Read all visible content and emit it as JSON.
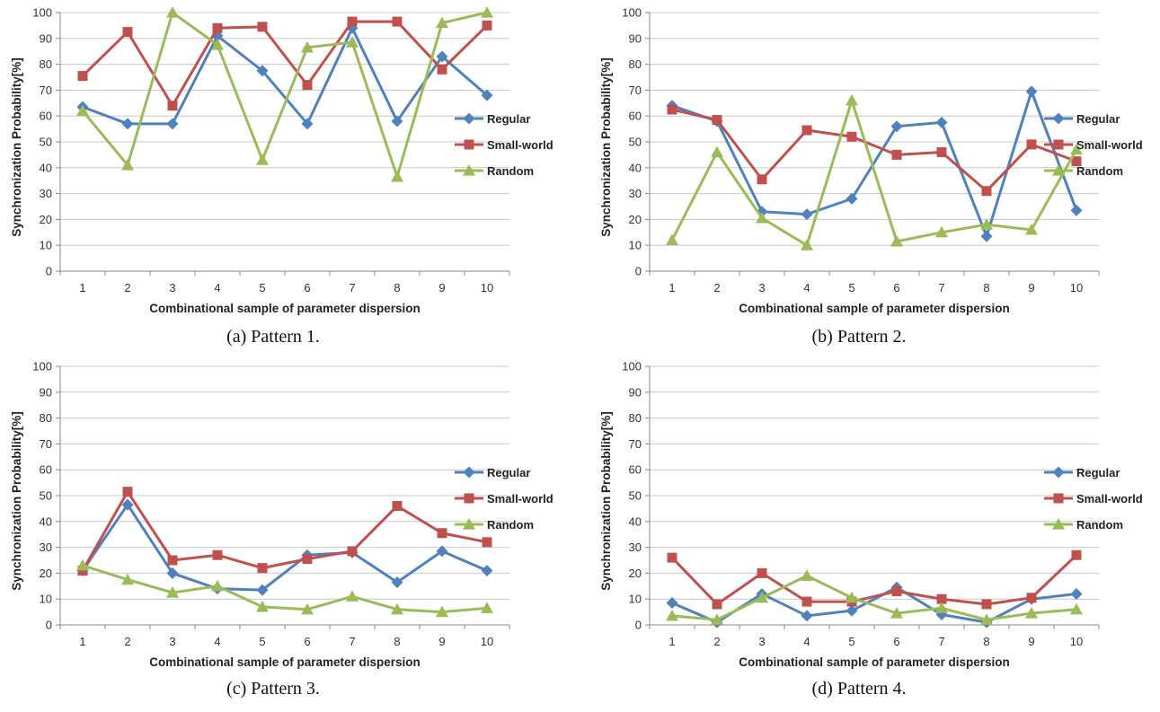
{
  "chart_data": [
    {
      "type": "line",
      "caption": "(a) Pattern 1.",
      "xlabel": "Combinational sample of parameter dispersion",
      "ylabel": "Synchronization Probability[%]",
      "ylim": [
        0,
        100
      ],
      "categories": [
        "1",
        "2",
        "3",
        "4",
        "5",
        "6",
        "7",
        "8",
        "9",
        "10"
      ],
      "y_ticks": [
        "0",
        "10",
        "20",
        "30",
        "40",
        "50",
        "60",
        "70",
        "80",
        "90",
        "100"
      ],
      "grid": true,
      "legend_position": "right",
      "series": [
        {
          "name": "Regular",
          "color": "#4F81BD",
          "marker": "diamond",
          "values": [
            63.5,
            57,
            57,
            91,
            77.5,
            57,
            94,
            58,
            83,
            68
          ]
        },
        {
          "name": "Small-world",
          "color": "#C0504D",
          "marker": "square",
          "values": [
            75.5,
            92.5,
            64,
            94,
            94.5,
            72,
            96.5,
            96.5,
            78,
            95
          ]
        },
        {
          "name": "Random",
          "color": "#9BBB59",
          "marker": "triangle",
          "values": [
            62,
            41,
            100,
            87.5,
            43,
            86.5,
            88.5,
            36.5,
            96,
            100
          ]
        }
      ]
    },
    {
      "type": "line",
      "caption": "(b) Pattern 2.",
      "xlabel": "Combinational sample of parameter dispersion",
      "ylabel": "Synchronization Probability[%]",
      "ylim": [
        0,
        100
      ],
      "categories": [
        "1",
        "2",
        "3",
        "4",
        "5",
        "6",
        "7",
        "8",
        "9",
        "10"
      ],
      "y_ticks": [
        "0",
        "10",
        "20",
        "30",
        "40",
        "50",
        "60",
        "70",
        "80",
        "90",
        "100"
      ],
      "grid": true,
      "legend_position": "right",
      "series": [
        {
          "name": "Regular",
          "color": "#4F81BD",
          "marker": "diamond",
          "values": [
            64,
            58,
            23,
            22,
            28,
            56,
            57.5,
            13.5,
            69.5,
            23.5
          ]
        },
        {
          "name": "Small-world",
          "color": "#C0504D",
          "marker": "square",
          "values": [
            62.5,
            58.5,
            35.5,
            54.5,
            52,
            45,
            46,
            31,
            49,
            42.5
          ]
        },
        {
          "name": "Random",
          "color": "#9BBB59",
          "marker": "triangle",
          "values": [
            12,
            46,
            20.5,
            10,
            66,
            11.5,
            15,
            18,
            16,
            47
          ]
        }
      ]
    },
    {
      "type": "line",
      "caption": "(c) Pattern 3.",
      "xlabel": "Combinational sample of parameter dispersion",
      "ylabel": "Synchronization Probability[%]",
      "ylim": [
        0,
        100
      ],
      "categories": [
        "1",
        "2",
        "3",
        "4",
        "5",
        "6",
        "7",
        "8",
        "9",
        "10"
      ],
      "y_ticks": [
        "0",
        "10",
        "20",
        "30",
        "40",
        "50",
        "60",
        "70",
        "80",
        "90",
        "100"
      ],
      "grid": true,
      "legend_position": "right",
      "series": [
        {
          "name": "Regular",
          "color": "#4F81BD",
          "marker": "diamond",
          "values": [
            21,
            46.5,
            20,
            14,
            13.5,
            27,
            28,
            16.5,
            28.5,
            21
          ]
        },
        {
          "name": "Small-world",
          "color": "#C0504D",
          "marker": "square",
          "values": [
            21,
            51.5,
            25,
            27,
            22,
            25.5,
            28.5,
            46,
            35.5,
            32
          ]
        },
        {
          "name": "Random",
          "color": "#9BBB59",
          "marker": "triangle",
          "values": [
            23,
            17.5,
            12.5,
            15,
            7,
            6,
            11,
            6,
            5,
            6.5
          ]
        }
      ]
    },
    {
      "type": "line",
      "caption": "(d) Pattern 4.",
      "xlabel": "Combinational sample of parameter dispersion",
      "ylabel": "Synchronization Probability[%]",
      "ylim": [
        0,
        100
      ],
      "categories": [
        "1",
        "2",
        "3",
        "4",
        "5",
        "6",
        "7",
        "8",
        "9",
        "10"
      ],
      "y_ticks": [
        "0",
        "10",
        "20",
        "30",
        "40",
        "50",
        "60",
        "70",
        "80",
        "90",
        "100"
      ],
      "grid": true,
      "legend_position": "right",
      "series": [
        {
          "name": "Regular",
          "color": "#4F81BD",
          "marker": "diamond",
          "values": [
            8.5,
            1,
            12,
            3.5,
            5.5,
            14.5,
            4,
            1,
            10,
            12
          ]
        },
        {
          "name": "Small-world",
          "color": "#C0504D",
          "marker": "square",
          "values": [
            26,
            8,
            20,
            9,
            9,
            13,
            10,
            8,
            10.5,
            27
          ]
        },
        {
          "name": "Random",
          "color": "#9BBB59",
          "marker": "triangle",
          "values": [
            3.5,
            2,
            10.5,
            19,
            10.5,
            4.5,
            6.5,
            2,
            4.5,
            6
          ]
        }
      ]
    }
  ]
}
